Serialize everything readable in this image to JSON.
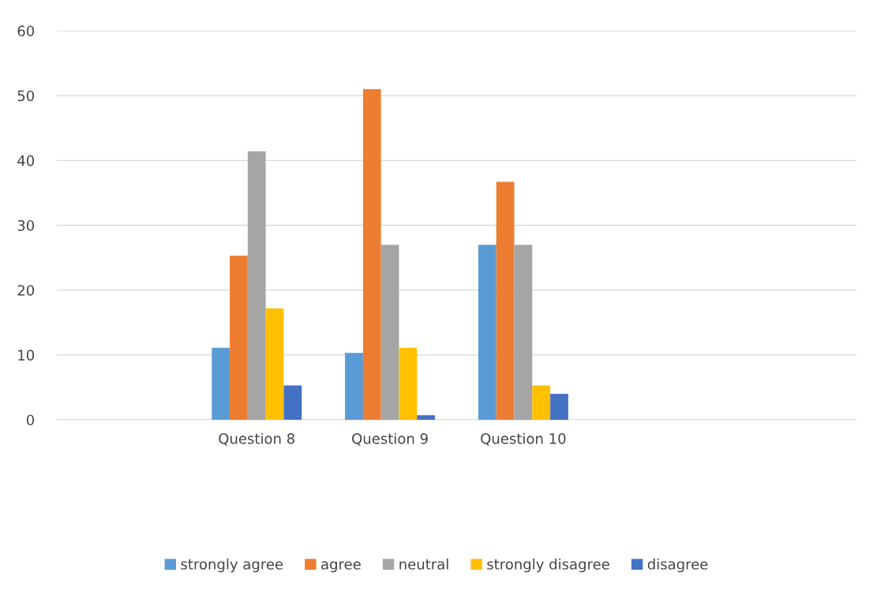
{
  "chart_data": {
    "type": "bar",
    "categories": [
      null,
      "Question 8",
      "Question 9",
      "Question 10",
      null,
      null
    ],
    "series": [
      {
        "name": "strongly agree",
        "color": "#5b9bd5",
        "values": [
          null,
          11.1,
          10.3,
          27,
          null,
          null
        ]
      },
      {
        "name": "agree",
        "color": "#ed7d31",
        "values": [
          null,
          25.3,
          51,
          36.7,
          null,
          null
        ]
      },
      {
        "name": "neutral",
        "color": "#a5a5a5",
        "values": [
          null,
          41.4,
          27,
          27,
          null,
          null
        ]
      },
      {
        "name": "strongly disagree",
        "color": "#ffc000",
        "values": [
          null,
          17.2,
          11.1,
          5.3,
          null,
          null
        ]
      },
      {
        "name": "disagree",
        "color": "#4472c4",
        "values": [
          null,
          5.3,
          0.7,
          4,
          null,
          null
        ]
      }
    ],
    "ylim": [
      0,
      60
    ],
    "yticks": [
      0,
      10,
      20,
      30,
      40,
      50,
      60
    ],
    "grid": "y",
    "legend": "bottom"
  }
}
